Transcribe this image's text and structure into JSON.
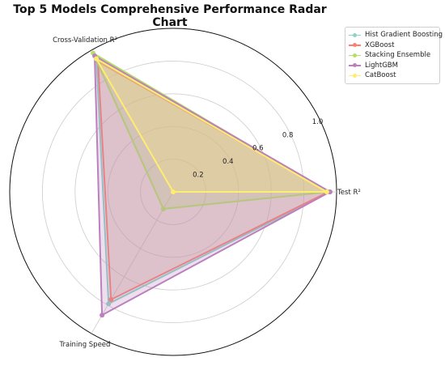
{
  "chart_data": {
    "type": "radar",
    "title": "Top 5 Models Comprehensive Performance Radar Chart",
    "axes": [
      "Test R²",
      "Cross-Validation R²",
      "Training Speed"
    ],
    "rlim": [
      0,
      1
    ],
    "r_ticks": [
      "0.2",
      "0.4",
      "0.6",
      "0.8",
      "1.0"
    ],
    "r_tick_values": [
      0.2,
      0.4,
      0.6,
      0.8,
      1.0
    ],
    "grid": true,
    "legend_position": "top-right",
    "series": [
      {
        "name": "Hist Gradient Boosting",
        "color": "#8dd3c7",
        "values": [
          0.96,
          0.94,
          0.79
        ]
      },
      {
        "name": "XGBoost",
        "color": "#fb8072",
        "values": [
          0.95,
          0.92,
          0.76
        ]
      },
      {
        "name": "Stacking Ensemble",
        "color": "#b3de69",
        "values": [
          0.95,
          0.98,
          0.12
        ]
      },
      {
        "name": "LightGBM",
        "color": "#bc80bd",
        "values": [
          0.96,
          0.96,
          0.87
        ]
      },
      {
        "name": "CatBoost",
        "color": "#ffed6f",
        "values": [
          0.94,
          0.94,
          0.0
        ]
      }
    ]
  }
}
